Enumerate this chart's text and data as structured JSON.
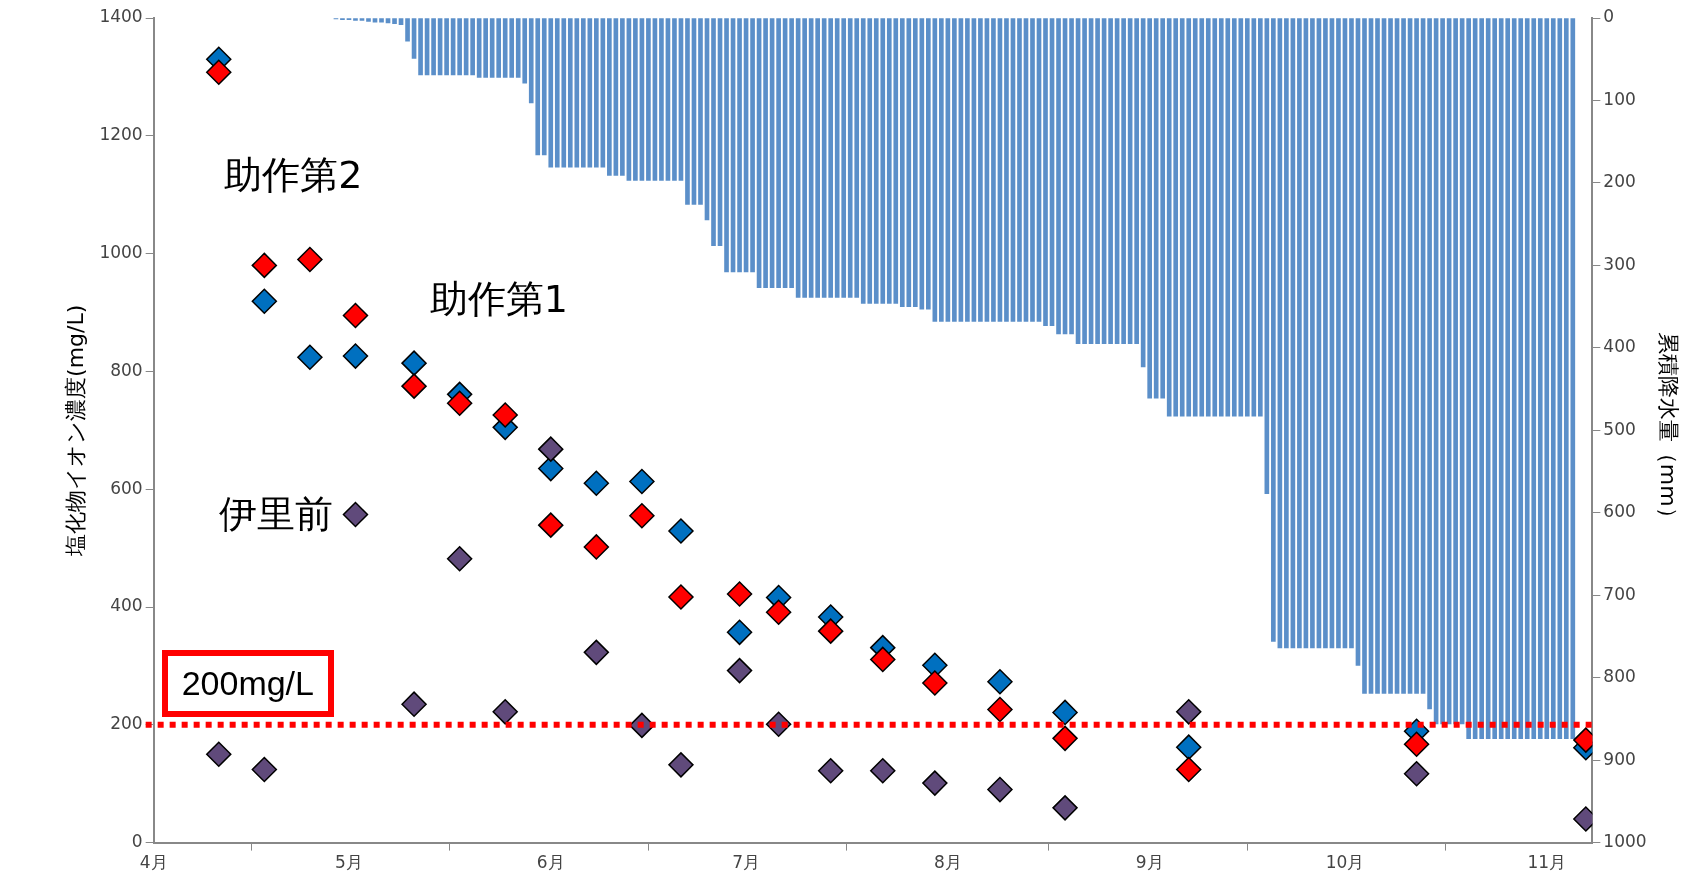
{
  "chart_data": {
    "type": "scatter",
    "ylabel": "塩化物イオン濃度(mg/L)",
    "y2label": "累積降水量（mm）",
    "marker": "diamond",
    "xlim": [
      "--04-01",
      "--11-08"
    ],
    "xticks": [
      {
        "value": "--04-01",
        "label": "4月"
      },
      {
        "value": "--05-01",
        "label": "5月"
      },
      {
        "value": "--06-01",
        "label": "6月"
      },
      {
        "value": "--07-01",
        "label": "7月"
      },
      {
        "value": "--08-01",
        "label": "8月"
      },
      {
        "value": "--09-01",
        "label": "9月"
      },
      {
        "value": "--10-01",
        "label": "10月"
      },
      {
        "value": "--11-01",
        "label": "11月"
      }
    ],
    "ylim": [
      0,
      1400
    ],
    "yticks": [
      0,
      200,
      400,
      600,
      800,
      1000,
      1200,
      1400
    ],
    "y2lim": [
      1000,
      0
    ],
    "y2ticks": [
      0,
      100,
      200,
      300,
      400,
      500,
      600,
      700,
      800,
      900,
      1000
    ],
    "x": [
      "--04-11",
      "--04-18",
      "--04-25",
      "--05-02",
      "--05-11",
      "--05-18",
      "--05-25",
      "--06-01",
      "--06-08",
      "--06-15",
      "--06-21",
      "--06-30",
      "--07-06",
      "--07-14",
      "--07-22",
      "--07-30",
      "--08-09",
      "--08-19",
      "--09-07",
      "--10-12",
      "--11-07"
    ],
    "series": [
      {
        "name": "助作第1",
        "color": "#0070c0",
        "values": [
          1330,
          919,
          824,
          826,
          814,
          761,
          705,
          635,
          610,
          613,
          529,
          357,
          416,
          383,
          331,
          301,
          273,
          221,
          162,
          189,
          161
        ]
      },
      {
        "name": "助作第2",
        "color": "#ff0000",
        "values": [
          1308,
          980,
          990,
          895,
          775,
          746,
          726,
          539,
          502,
          555,
          417,
          422,
          391,
          359,
          311,
          271,
          226,
          177,
          124,
          167,
          174
        ]
      },
      {
        "name": "伊里前",
        "color": "#604a7b",
        "x": [
          "--04-11",
          "--04-18",
          "--05-02",
          "--05-11",
          "--05-18",
          "--05-25",
          "--06-01",
          "--06-08",
          "--06-15",
          "--06-21",
          "--06-30",
          "--07-06",
          "--07-14",
          "--07-22",
          "--07-30",
          "--08-09",
          "--08-19",
          "--09-07",
          "--10-12",
          "--11-07"
        ],
        "values": [
          150,
          124,
          557,
          235,
          482,
          222,
          668,
          323,
          199,
          132,
          292,
          201,
          122,
          122,
          101,
          90,
          59,
          222,
          117,
          40
        ]
      },
      {
        "type": "bar",
        "axis": "y2",
        "color": "#5b8fc9",
        "x": [
          "--04-29",
          "--04-30",
          "--05-01",
          "--05-02",
          "--05-03",
          "--05-04",
          "--05-05",
          "--05-06",
          "--05-07",
          "--05-08",
          "--05-09",
          "--05-10",
          "--05-11",
          "--05-12",
          "--05-13",
          "--05-14",
          "--05-15",
          "--05-16",
          "--05-17",
          "--05-18",
          "--05-19",
          "--05-20",
          "--05-21",
          "--05-22",
          "--05-23",
          "--05-24",
          "--05-25",
          "--05-26",
          "--05-27",
          "--05-28",
          "--05-29",
          "--05-30",
          "--05-31",
          "--06-01",
          "--06-02",
          "--06-03",
          "--06-04",
          "--06-05",
          "--06-06",
          "--06-07",
          "--06-08",
          "--06-09",
          "--06-10",
          "--06-11",
          "--06-12",
          "--06-13",
          "--06-14",
          "--06-15",
          "--06-16",
          "--06-17",
          "--06-18",
          "--06-19",
          "--06-20",
          "--06-21",
          "--06-22",
          "--06-23",
          "--06-24",
          "--06-25",
          "--06-26",
          "--06-27",
          "--06-28",
          "--06-29",
          "--06-30",
          "--07-01",
          "--07-02",
          "--07-03",
          "--07-04",
          "--07-05",
          "--07-06",
          "--07-07",
          "--07-08",
          "--07-09",
          "--07-10",
          "--07-11",
          "--07-12",
          "--07-13",
          "--07-14",
          "--07-15",
          "--07-16",
          "--07-17",
          "--07-18",
          "--07-19",
          "--07-20",
          "--07-21",
          "--07-22",
          "--07-23",
          "--07-24",
          "--07-25",
          "--07-26",
          "--07-27",
          "--07-28",
          "--07-29",
          "--07-30",
          "--07-31",
          "--08-01",
          "--08-02",
          "--08-03",
          "--08-04",
          "--08-05",
          "--08-06",
          "--08-07",
          "--08-08",
          "--08-09",
          "--08-10",
          "--08-11",
          "--08-12",
          "--08-13",
          "--08-14",
          "--08-15",
          "--08-16",
          "--08-17",
          "--08-18",
          "--08-19",
          "--08-20",
          "--08-21",
          "--08-22",
          "--08-23",
          "--08-24",
          "--08-25",
          "--08-26",
          "--08-27",
          "--08-28",
          "--08-29",
          "--08-30",
          "--08-31",
          "--09-01",
          "--09-02",
          "--09-03",
          "--09-04",
          "--09-05",
          "--09-06",
          "--09-07",
          "--09-08",
          "--09-09",
          "--09-10",
          "--09-11",
          "--09-12",
          "--09-13",
          "--09-14",
          "--09-15",
          "--09-16",
          "--09-17",
          "--09-18",
          "--09-19",
          "--09-20",
          "--09-21",
          "--09-22",
          "--09-23",
          "--09-24",
          "--09-25",
          "--09-26",
          "--09-27",
          "--09-28",
          "--09-29",
          "--09-30",
          "--10-01",
          "--10-02",
          "--10-03",
          "--10-04",
          "--10-05",
          "--10-06",
          "--10-07",
          "--10-08",
          "--10-09",
          "--10-10",
          "--10-11",
          "--10-12",
          "--10-13",
          "--10-14",
          "--10-15",
          "--10-16",
          "--10-17",
          "--10-18",
          "--10-19",
          "--10-20",
          "--10-21",
          "--10-22",
          "--10-23",
          "--10-24",
          "--10-25",
          "--10-26",
          "--10-27",
          "--10-28",
          "--10-29",
          "--10-30",
          "--10-31",
          "--11-01",
          "--11-02",
          "--11-03",
          "--11-04",
          "--11-05"
        ],
        "values": [
          1,
          2,
          2,
          3,
          3,
          4,
          5,
          5,
          6,
          7,
          8,
          28,
          49,
          69,
          69,
          69,
          69,
          69,
          69,
          69,
          69,
          69,
          72,
          72,
          72,
          72,
          72,
          72,
          72,
          79,
          103,
          166,
          166,
          181,
          181,
          181,
          181,
          181,
          181,
          181,
          181,
          181,
          191,
          191,
          191,
          197,
          197,
          197,
          197,
          197,
          197,
          197,
          197,
          197,
          226,
          226,
          226,
          245,
          276,
          276,
          308,
          308,
          308,
          308,
          308,
          327,
          327,
          327,
          327,
          327,
          327,
          339,
          339,
          339,
          339,
          339,
          339,
          339,
          339,
          339,
          339,
          346,
          346,
          346,
          346,
          346,
          346,
          350,
          350,
          350,
          353,
          353,
          368,
          368,
          368,
          368,
          368,
          368,
          368,
          368,
          368,
          368,
          368,
          368,
          368,
          368,
          368,
          368,
          368,
          373,
          373,
          383,
          383,
          383,
          395,
          395,
          395,
          395,
          395,
          395,
          395,
          395,
          395,
          395,
          423,
          461,
          461,
          461,
          483,
          483,
          483,
          483,
          483,
          483,
          483,
          483,
          483,
          483,
          483,
          483,
          483,
          483,
          483,
          577,
          756,
          764,
          764,
          764,
          764,
          764,
          764,
          764,
          764,
          764,
          764,
          764,
          764,
          785,
          819,
          819,
          819,
          819,
          819,
          819,
          819,
          819,
          819,
          819,
          838,
          856,
          856,
          856,
          856,
          856,
          874,
          874,
          874,
          874,
          874,
          874,
          874,
          874,
          874,
          874,
          874,
          874,
          874,
          874,
          874,
          874,
          874
        ]
      }
    ],
    "ref_lines": [
      {
        "axis": "y",
        "value": 200,
        "label": "200mg/L",
        "color": "#ff0000",
        "line_style": "dotted"
      }
    ]
  }
}
